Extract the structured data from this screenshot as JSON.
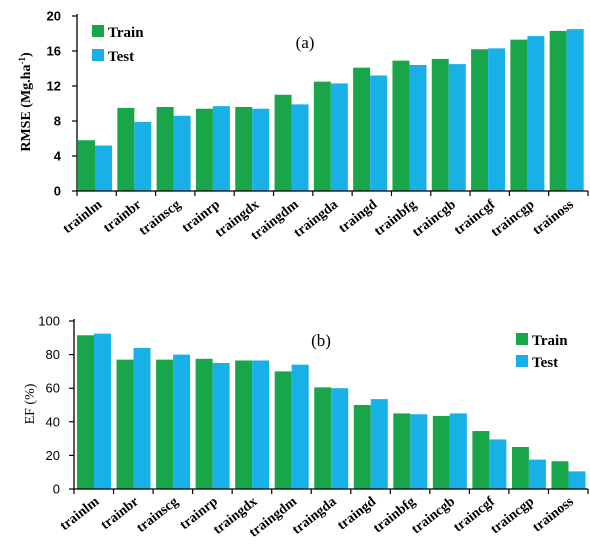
{
  "chart_data": [
    {
      "type": "bar",
      "panel_tag": "(a)",
      "title": "",
      "xlabel": "",
      "ylabel": "RMSE (Mg.ha",
      "ylabel_sup": "-1",
      "ylabel_close": ")",
      "ylim": [
        0,
        20
      ],
      "yticks": [
        "0",
        "4",
        "8",
        "12",
        "16",
        "20"
      ],
      "ytick_values": [
        0,
        4,
        8,
        12,
        16,
        20
      ],
      "grid": false,
      "legend_position": "top-left",
      "categories": [
        "trainlm",
        "trainbr",
        "trainscg",
        "trainrp",
        "traingdx",
        "traingdm",
        "traingda",
        "traingd",
        "trainbfg",
        "traincgb",
        "traincgf",
        "traincgp",
        "trainoss"
      ],
      "series": [
        {
          "name": "Train",
          "color": "#19a54a",
          "values": [
            5.8,
            9.5,
            9.6,
            9.4,
            9.6,
            11.0,
            12.5,
            14.1,
            14.9,
            15.1,
            16.2,
            17.3,
            18.3
          ]
        },
        {
          "name": "Test",
          "color": "#17b1e8",
          "values": [
            5.2,
            7.9,
            8.6,
            9.7,
            9.4,
            9.9,
            12.3,
            13.2,
            14.4,
            14.5,
            16.3,
            17.7,
            18.5
          ]
        }
      ]
    },
    {
      "type": "bar",
      "panel_tag": "(b)",
      "title": "",
      "xlabel": "",
      "ylabel": "EF (%)",
      "ylim": [
        0,
        100
      ],
      "yticks": [
        "0",
        "20",
        "40",
        "60",
        "80",
        "100"
      ],
      "ytick_values": [
        0,
        20,
        40,
        60,
        80,
        100
      ],
      "grid": false,
      "legend_position": "top-right",
      "categories": [
        "trainlm",
        "trainbr",
        "trainscg",
        "trainrp",
        "traingdx",
        "traingdm",
        "traingda",
        "traingd",
        "trainbfg",
        "traincgb",
        "traincgf",
        "traincgp",
        "trainoss"
      ],
      "series": [
        {
          "name": "Train",
          "color": "#19a54a",
          "values": [
            91.5,
            77,
            77,
            77.5,
            76.5,
            70,
            60.5,
            50,
            45,
            43.5,
            34.5,
            25,
            16.5
          ]
        },
        {
          "name": "Test",
          "color": "#17b1e8",
          "values": [
            92.5,
            84,
            80,
            75,
            76.5,
            74,
            60,
            53.5,
            44.5,
            45,
            29.5,
            17.5,
            10.5
          ]
        }
      ]
    }
  ]
}
